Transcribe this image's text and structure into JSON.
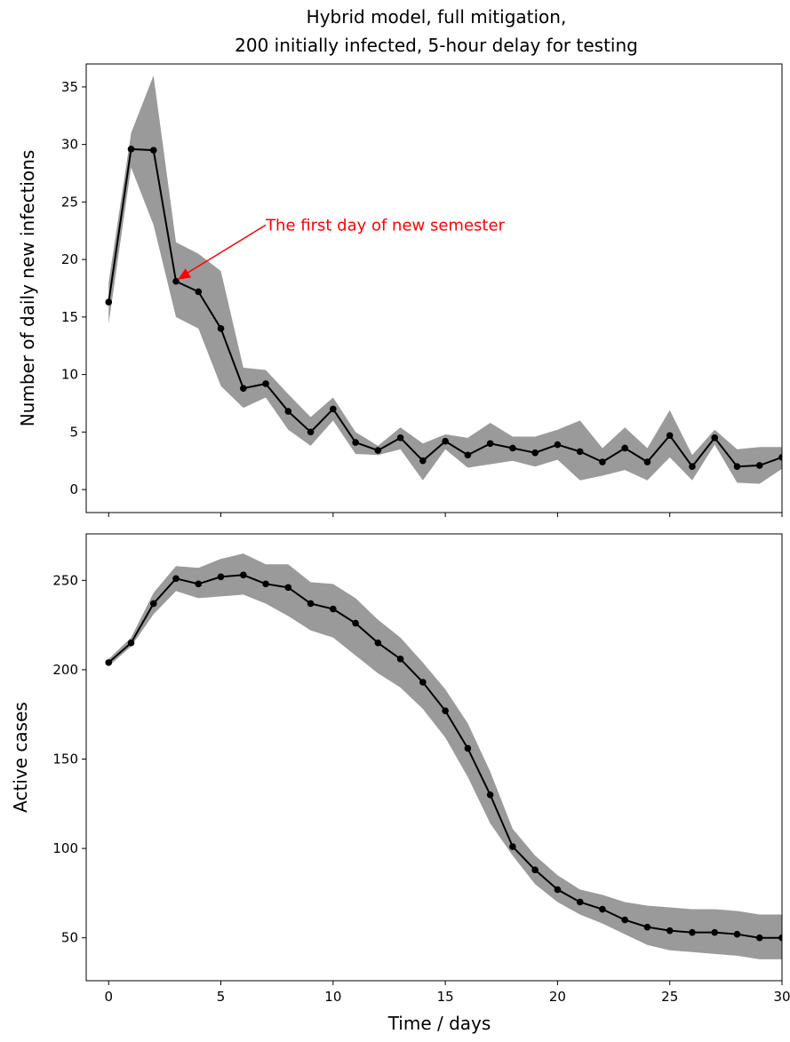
{
  "title_line1": "Hybrid model, full mitigation,",
  "title_line2": "200 initially infected, 5-hour delay for testing",
  "colors": {
    "line": "#000000",
    "band": "#9a9a9a",
    "annotation": "#ff0000"
  },
  "chart_data": [
    {
      "type": "line",
      "ylabel": "Number of daily new infections",
      "xlim": [
        -1,
        30
      ],
      "ylim": [
        -2,
        37
      ],
      "yticks": [
        0,
        5,
        10,
        15,
        20,
        25,
        30,
        35
      ],
      "xticks": [
        0,
        5,
        10,
        15,
        20,
        25,
        30
      ],
      "show_xtick_labels": false,
      "x": [
        0,
        1,
        2,
        3,
        4,
        5,
        6,
        7,
        8,
        9,
        10,
        11,
        12,
        13,
        14,
        15,
        16,
        17,
        18,
        19,
        20,
        21,
        22,
        23,
        24,
        25,
        26,
        27,
        28,
        29,
        30
      ],
      "y": [
        16.3,
        29.6,
        29.5,
        18.1,
        17.2,
        14.0,
        8.8,
        9.2,
        6.8,
        5.0,
        7.0,
        4.1,
        3.4,
        4.5,
        2.5,
        4.2,
        3.0,
        4.0,
        3.6,
        3.2,
        3.9,
        3.3,
        2.4,
        3.6,
        2.4,
        4.7,
        2.0,
        4.5,
        2.0,
        2.1,
        2.8
      ],
      "y_low": [
        14.4,
        28.0,
        23.0,
        15.0,
        14.0,
        9.0,
        7.1,
        8.0,
        5.2,
        3.8,
        6.0,
        3.1,
        3.0,
        3.5,
        0.8,
        3.5,
        1.9,
        2.2,
        2.5,
        2.0,
        2.6,
        0.8,
        1.2,
        1.7,
        0.8,
        2.8,
        0.8,
        3.9,
        0.6,
        0.5,
        1.8
      ],
      "y_high": [
        18.0,
        31.0,
        36.0,
        21.5,
        20.5,
        19.0,
        10.6,
        10.4,
        8.3,
        6.3,
        8.0,
        5.0,
        3.8,
        5.4,
        4.0,
        4.8,
        4.5,
        5.8,
        4.6,
        4.6,
        5.2,
        6.0,
        3.6,
        5.4,
        3.6,
        6.9,
        3.0,
        5.2,
        3.5,
        3.7,
        3.7
      ],
      "annotation": {
        "text": "The first day of new semester",
        "x": 3,
        "y": 18.1,
        "text_x": 7,
        "text_y": 23
      }
    },
    {
      "type": "line",
      "ylabel": "Active cases",
      "xlabel": "Time / days",
      "xlim": [
        -1,
        30
      ],
      "ylim": [
        26,
        276
      ],
      "yticks": [
        50,
        100,
        150,
        200,
        250
      ],
      "xticks": [
        0,
        5,
        10,
        15,
        20,
        25,
        30
      ],
      "show_xtick_labels": true,
      "x": [
        0,
        1,
        2,
        3,
        4,
        5,
        6,
        7,
        8,
        9,
        10,
        11,
        12,
        13,
        14,
        15,
        16,
        17,
        18,
        19,
        20,
        21,
        22,
        23,
        24,
        25,
        26,
        27,
        28,
        29,
        30
      ],
      "y": [
        204,
        215,
        237,
        251,
        248,
        252,
        253,
        248,
        246,
        237,
        234,
        226,
        215,
        206,
        193,
        177,
        156,
        130,
        101,
        88,
        77,
        70,
        66,
        60,
        56,
        54,
        53,
        53,
        52,
        50,
        50
      ],
      "y_low": [
        202,
        213,
        231,
        244,
        240,
        241,
        242,
        237,
        230,
        222,
        218,
        208,
        198,
        190,
        178,
        162,
        140,
        114,
        96,
        80,
        70,
        63,
        58,
        52,
        46,
        43,
        42,
        41,
        40,
        38,
        38
      ],
      "y_high": [
        206,
        218,
        243,
        258,
        257,
        262,
        265,
        259,
        259,
        249,
        248,
        240,
        228,
        218,
        204,
        189,
        170,
        143,
        111,
        96,
        85,
        77,
        74,
        70,
        68,
        67,
        66,
        66,
        65,
        63,
        63
      ]
    }
  ]
}
